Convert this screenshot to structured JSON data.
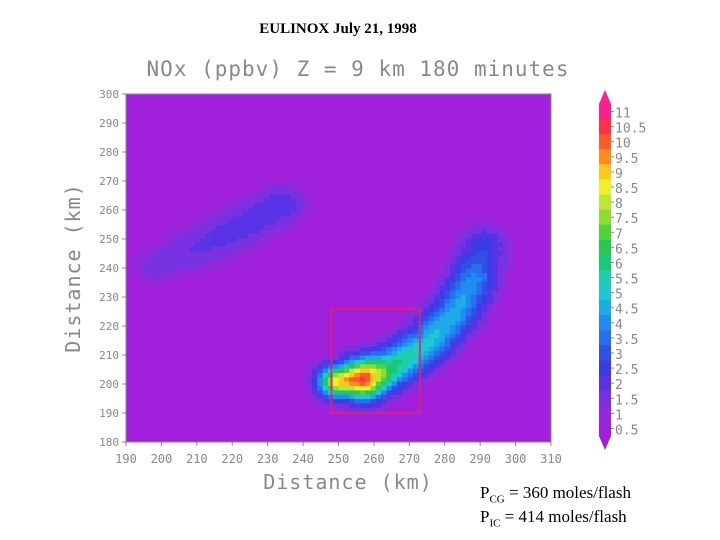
{
  "header": {
    "title": "EULINOX  July 21, 1998"
  },
  "flash": {
    "cg_symbol": "P",
    "cg_sub": "CG",
    "cg_text": " = 360 moles/flash",
    "ic_symbol": "P",
    "ic_sub": "IC",
    "ic_text": " = 414 moles/flash"
  },
  "chart_data": {
    "type": "heatmap",
    "title": "NOx (ppbv)   Z = 9 km   180 minutes",
    "xlabel": "Distance (km)",
    "ylabel": "Distance (km)",
    "xlim": [
      190,
      310
    ],
    "ylim": [
      180,
      300
    ],
    "xticks": [
      "190",
      "200",
      "210",
      "220",
      "230",
      "240",
      "250",
      "260",
      "270",
      "280",
      "290",
      "300",
      "310"
    ],
    "yticks": [
      "180",
      "190",
      "200",
      "210",
      "220",
      "230",
      "240",
      "250",
      "260",
      "270",
      "280",
      "290",
      "300"
    ],
    "background_value": 0.5,
    "plumes": [
      {
        "name": "main-plume",
        "x": [
          250,
          257,
          265,
          275,
          283,
          288,
          291
        ],
        "y": [
          201,
          202,
          206,
          214,
          225,
          236,
          248
        ],
        "width": [
          4,
          5,
          5,
          5,
          5,
          5,
          5
        ],
        "peak": [
          9.0,
          10.5,
          6.0,
          5.0,
          4.5,
          4.0,
          2.5
        ]
      },
      {
        "name": "upper-left-band",
        "x": [
          198,
          210,
          222,
          234
        ],
        "y": [
          241,
          247,
          254,
          262
        ],
        "width": [
          5,
          6,
          6,
          5
        ],
        "peak": [
          1.5,
          1.8,
          2.0,
          2.2
        ]
      }
    ],
    "highlight_box": {
      "x": [
        248,
        273
      ],
      "y": [
        190,
        226
      ]
    },
    "colorbar": {
      "labels": [
        "11",
        "10.5",
        "10",
        "9.5",
        "9",
        "8.5",
        "8",
        "7.5",
        "7",
        "6.5",
        "6",
        "5.5",
        "5",
        "4.5",
        "4",
        "3.5",
        "3",
        "2.5",
        "2",
        "1.5",
        "1",
        "0.5"
      ],
      "colors": [
        "#ff1e8c",
        "#ff3246",
        "#ff5a28",
        "#ff8c1e",
        "#ffc81e",
        "#f0f02a",
        "#bee632",
        "#8cdc32",
        "#50d23c",
        "#28c850",
        "#19c878",
        "#1ecdaa",
        "#1ec8d2",
        "#1eaae6",
        "#1e8cf0",
        "#286ef0",
        "#3250e6",
        "#3c3ce6",
        "#5a32e6",
        "#7832e1",
        "#9628dc",
        "#a020dc"
      ],
      "background_color": "#a020dc"
    }
  }
}
